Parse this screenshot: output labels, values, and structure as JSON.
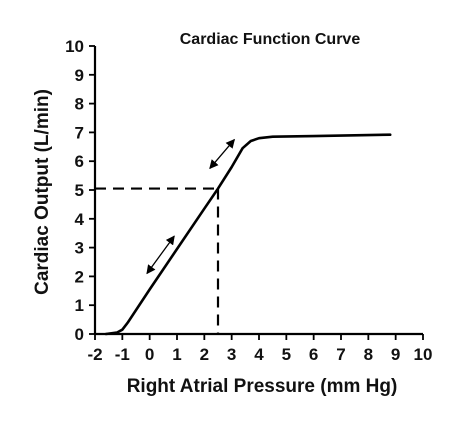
{
  "chart_data": {
    "type": "line",
    "title": "Cardiac Function Curve",
    "xlabel": "Right Atrial Pressure (mm Hg)",
    "ylabel": "Cardiac Output (L/min)",
    "xlim": [
      -2,
      10
    ],
    "ylim": [
      0,
      10
    ],
    "x_ticks": [
      "-2",
      "-1",
      "0",
      "1",
      "2",
      "3",
      "4",
      "5",
      "6",
      "7",
      "8",
      "9",
      "10"
    ],
    "y_ticks": [
      "0",
      "1",
      "2",
      "3",
      "4",
      "5",
      "6",
      "7",
      "8",
      "9",
      "10"
    ],
    "grid": false,
    "series": [
      {
        "points": [
          [
            -1.6,
            0.0
          ],
          [
            -1.2,
            0.05
          ],
          [
            -1.0,
            0.15
          ],
          [
            -0.8,
            0.4
          ],
          [
            0.0,
            1.55
          ],
          [
            1.0,
            2.95
          ],
          [
            2.0,
            4.35
          ],
          [
            2.5,
            5.05
          ],
          [
            3.0,
            5.8
          ],
          [
            3.4,
            6.45
          ],
          [
            3.7,
            6.7
          ],
          [
            4.0,
            6.8
          ],
          [
            4.5,
            6.85
          ],
          [
            6.0,
            6.87
          ],
          [
            7.5,
            6.9
          ],
          [
            8.8,
            6.92
          ]
        ]
      }
    ],
    "reference_lines": {
      "x": 2.5,
      "y": 5.05
    },
    "annotations": [
      {
        "type": "double-arrow",
        "from": [
          -0.1,
          2.1
        ],
        "to": [
          0.9,
          3.4
        ]
      },
      {
        "type": "double-arrow",
        "from": [
          2.2,
          5.75
        ],
        "to": [
          3.1,
          6.75
        ]
      }
    ],
    "colors": {
      "line": "#000000",
      "text": "#111111",
      "background": "#ffffff"
    }
  }
}
